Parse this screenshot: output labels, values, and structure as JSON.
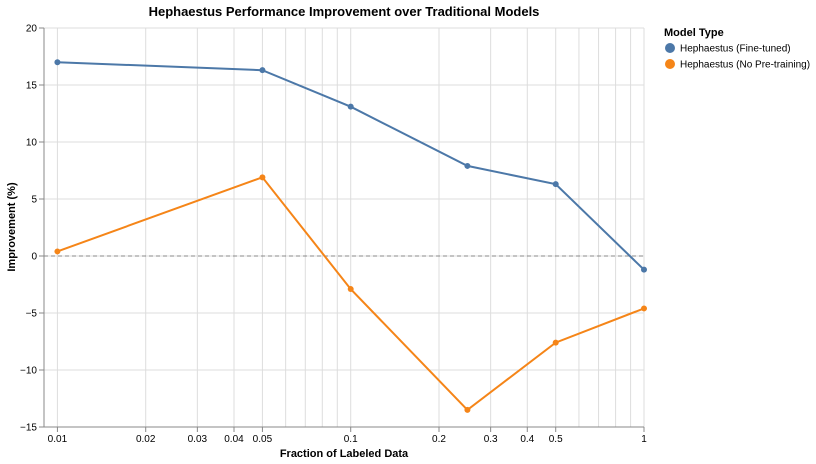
{
  "chart_data": {
    "type": "line",
    "title": "Hephaestus Performance Improvement over Traditional Models",
    "xlabel": "Fraction of Labeled Data",
    "ylabel": "Improvement (%)",
    "x_scale": "log",
    "x": [
      0.01,
      0.05,
      0.1,
      0.25,
      0.5,
      1
    ],
    "xlim": [
      0.009,
      1
    ],
    "ylim": [
      -15,
      20
    ],
    "x_tick_labels": [
      "0.01",
      "0.02",
      "0.03",
      "0.04",
      "0.05",
      "0.1",
      "0.2",
      "0.3",
      "0.4",
      "0.5",
      "1"
    ],
    "y_tick_labels": [
      "20",
      "15",
      "10",
      "5",
      "0",
      "−5",
      "−10",
      "−15"
    ],
    "grid": true,
    "reference_line": {
      "y": 0,
      "style": "dashed"
    },
    "legend": {
      "title": "Model Type",
      "position": "right"
    },
    "series": [
      {
        "name": "Hephaestus (Fine-tuned)",
        "color": "#4c78a8",
        "values": [
          17.0,
          16.3,
          13.1,
          7.9,
          6.3,
          -1.2
        ]
      },
      {
        "name": "Hephaestus (No Pre-training)",
        "color": "#f58518",
        "values": [
          0.4,
          6.9,
          -2.9,
          -13.5,
          -7.6,
          -4.6
        ]
      }
    ]
  }
}
